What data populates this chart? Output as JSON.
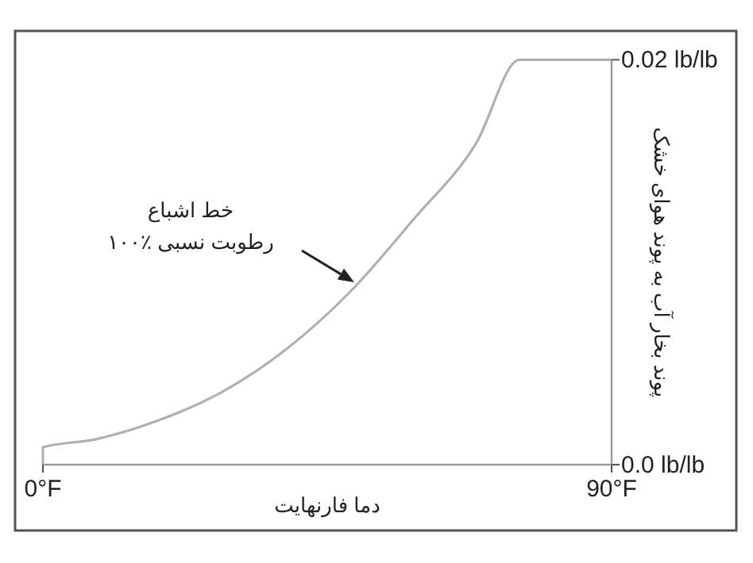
{
  "chart_data": {
    "type": "line",
    "xlabel": "دما فارنهایت",
    "ylabel": "پوند بخار آب به پوند هوای خشک",
    "x": [
      0,
      0,
      8.3,
      18.4,
      28.4,
      38.5,
      48.5,
      58.6,
      68.6,
      75.4,
      90
    ],
    "series": [
      {
        "color": "#b0b0b0",
        "values": [
          0,
          0.00086,
          0.00125,
          0.0022,
          0.0036,
          0.0057,
          0.0085,
          0.0121,
          0.0159,
          0.02,
          0.02
        ]
      }
    ],
    "xlim": [
      0,
      90
    ],
    "xticks": [
      {
        "value": 0,
        "label": "0°F"
      },
      {
        "value": 90,
        "label": "90°F"
      }
    ],
    "ylim": [
      0,
      0.02
    ],
    "yticks": [
      {
        "value": 0,
        "label": "0.0 lb/lb"
      },
      {
        "value": 0.02,
        "label": "0.02 lb/lb"
      }
    ],
    "grid": false,
    "marker": "none",
    "line_style": "solid",
    "annotations": [
      "خط اشباع\nرطوبت نسبی ٪۱۰۰"
    ]
  }
}
